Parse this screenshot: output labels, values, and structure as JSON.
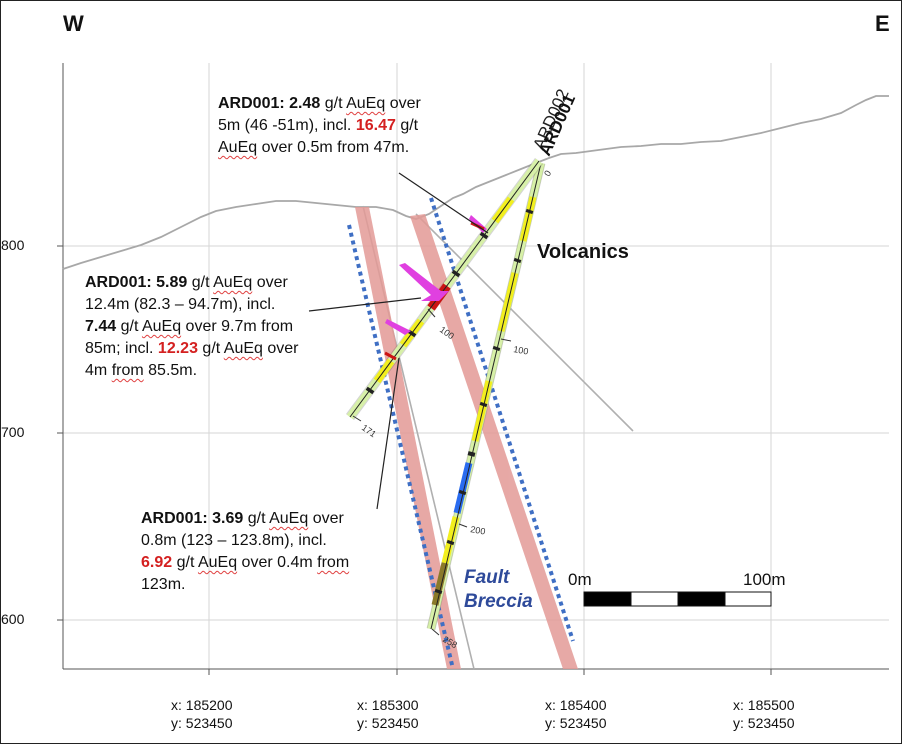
{
  "compass": {
    "west": "W",
    "east": "E"
  },
  "elevation_labels": [
    "800",
    "700",
    "600"
  ],
  "coordinate_labels": [
    {
      "x": "x: 185200",
      "y": "y: 523450"
    },
    {
      "x": "x: 185300",
      "y": "y: 523450"
    },
    {
      "x": "x: 185400",
      "y": "y: 523450"
    },
    {
      "x": "x: 185500",
      "y": "y: 523450"
    }
  ],
  "holes": {
    "ard001": "ARD001",
    "ard002": "ARD002"
  },
  "depth_ticks": {
    "collar": "0",
    "d100_ard001": "100",
    "d171": "171",
    "d100_ard002": "100",
    "d200": "200",
    "d258": "258"
  },
  "units": {
    "volcanics": "Volcanics",
    "fault_line1": "Fault",
    "fault_line2": "Breccia"
  },
  "scale_bar": {
    "start": "0m",
    "end": "100m"
  },
  "callouts": {
    "top": {
      "hole": "ARD001:",
      "grade1": "2.48",
      "unit1": "g/t",
      "aueq1": "AuEq",
      "over1": "over",
      "interval1": "5m (46 -51m), incl.",
      "grade2": "16.47",
      "unit2": "g/t",
      "aueq2": "AuEq",
      "tail2": "over 0.5m from 47m."
    },
    "middle": {
      "hole": "ARD001:",
      "grade1": "5.89",
      "unit1": "g/t",
      "aueq1": "AuEq",
      "over1": "over",
      "interval1": "12.4m (82.3 – 94.7m), incl.",
      "grade2": "7.44",
      "unit2": "g/t",
      "aueq2": "AuEq",
      "tail2": "over 9.7m from",
      "interval2": "85m; incl.",
      "grade3": "12.23",
      "unit3": "g/t",
      "aueq3": "AuEq",
      "over3": "over",
      "tail3a": "4m",
      "tail3b": "from",
      "tail3c": "85.5m."
    },
    "bottom": {
      "hole": "ARD001:",
      "grade1": "3.69",
      "unit1": "g/t",
      "aueq1": "AuEq",
      "over1": "over",
      "interval1": "0.8m (123 – 123.8m), incl.",
      "grade2": "6.92",
      "unit2": "g/t",
      "aueq2": "AuEq",
      "tail2a": "over 0.4m",
      "tail2b": "from",
      "tail2c": "123m."
    }
  },
  "colors": {
    "fault_zone": "#e39a96",
    "fault_boundary": "#3f6fc4",
    "core_light_green": "#d7f0a8",
    "core_yellow": "#f2ef1e",
    "core_blue": "#2a6cf0",
    "core_magenta": "#e040e0",
    "core_red": "#cc1414",
    "topography": "#a8a8a8",
    "grade_red": "#d42020",
    "fault_text": "#2e4a9a"
  }
}
